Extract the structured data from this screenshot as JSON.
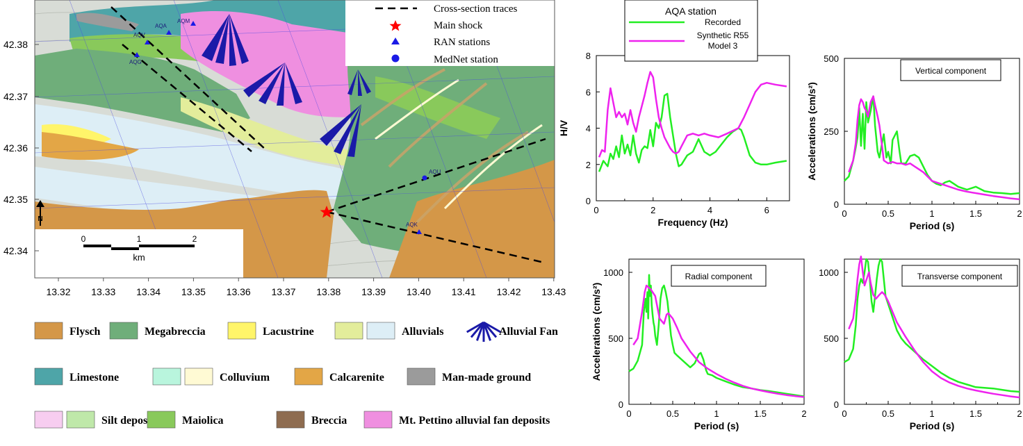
{
  "map": {
    "legend_box": {
      "items": [
        {
          "label": "Cross-section traces",
          "symbol": "dashed-line-icon"
        },
        {
          "label": "Main shock",
          "symbol": "star-icon",
          "color": "#ff0000"
        },
        {
          "label": "RAN stations",
          "symbol": "triangle-icon",
          "color": "#0000ff"
        },
        {
          "label": "MedNet station",
          "symbol": "circle-icon",
          "color": "#0000ff"
        }
      ]
    },
    "y_ticks": [
      "42.38",
      "42.37",
      "42.36",
      "42.35",
      "42.34"
    ],
    "x_ticks": [
      "13.32",
      "13.33",
      "13.34",
      "13.35",
      "13.36",
      "13.37",
      "13.38",
      "13.39",
      "13.40",
      "13.41",
      "13.42",
      "13.43"
    ],
    "stations": [
      "AQA",
      "AQM",
      "AQV",
      "AQG",
      "AQU",
      "AQK"
    ],
    "scale": {
      "ticks": [
        "0",
        "1",
        "2"
      ],
      "unit": "km"
    },
    "north_label": "N"
  },
  "geology_legend": [
    {
      "label": "Flysch",
      "colors": [
        "#d49748"
      ]
    },
    {
      "label": "Megabreccia",
      "colors": [
        "#6fae7a"
      ]
    },
    {
      "label": "Lacustrine",
      "colors": [
        "#fff56a"
      ]
    },
    {
      "label": "Alluvials",
      "colors": [
        "#e3ed9b",
        "#ddeef6"
      ]
    },
    {
      "label": "Alluvial Fan",
      "colors": [
        "#1a1aa8"
      ],
      "symbol": "fan-icon"
    },
    {
      "label": "Limestone",
      "colors": [
        "#4ea5a8"
      ]
    },
    {
      "label": "Colluvium",
      "colors": [
        "#b9f5dd",
        "#fffad4"
      ]
    },
    {
      "label": "Calcarenite",
      "colors": [
        "#e3a646"
      ]
    },
    {
      "label": "Man-made ground",
      "colors": [
        "#9b9b9b"
      ]
    },
    {
      "label": "Silt deposits",
      "colors": [
        "#f7cdf0",
        "#bfe8a9"
      ]
    },
    {
      "label": "Maiolica",
      "colors": [
        "#89c95b"
      ]
    },
    {
      "label": "Breccia",
      "colors": [
        "#8e6c50"
      ]
    },
    {
      "label": "Mt. Pettino alluvial fan deposits",
      "colors": [
        "#ef8fe0"
      ]
    }
  ],
  "series_colors": {
    "recorded": "#22ee22",
    "synthetic": "#ee22ee"
  },
  "chart_data": [
    {
      "type": "line",
      "legend": {
        "title": "AQA station",
        "entries": [
          "Recorded",
          "Synthetic R55",
          "Model 3"
        ]
      },
      "xlabel": "Frequency (Hz)",
      "ylabel": "H/V",
      "xlim": [
        0,
        6.8
      ],
      "ylim": [
        0,
        8
      ],
      "xticks": [
        "0",
        "2",
        "4",
        "6"
      ],
      "yticks": [
        "0",
        "2",
        "4",
        "6",
        "8"
      ],
      "series": [
        {
          "name": "Recorded",
          "x": [
            0.1,
            0.25,
            0.4,
            0.5,
            0.6,
            0.7,
            0.8,
            0.9,
            1.0,
            1.1,
            1.2,
            1.3,
            1.4,
            1.5,
            1.6,
            1.7,
            1.8,
            1.9,
            2.0,
            2.1,
            2.2,
            2.3,
            2.4,
            2.5,
            2.6,
            2.7,
            2.8,
            2.9,
            3.0,
            3.2,
            3.4,
            3.6,
            3.8,
            4.0,
            4.2,
            4.4,
            4.6,
            4.8,
            5.0,
            5.1,
            5.2,
            5.4,
            5.6,
            5.8,
            6.0,
            6.3,
            6.7
          ],
          "y": [
            1.6,
            2.2,
            1.9,
            2.6,
            2.3,
            3.0,
            2.4,
            3.6,
            2.6,
            3.1,
            2.5,
            3.6,
            2.6,
            2.1,
            2.8,
            3.0,
            2.9,
            3.9,
            3.0,
            4.3,
            4.0,
            4.6,
            5.8,
            5.9,
            4.6,
            3.6,
            2.6,
            1.9,
            2.0,
            2.5,
            2.7,
            3.4,
            2.7,
            2.5,
            2.7,
            3.1,
            3.5,
            3.8,
            4.0,
            3.9,
            3.5,
            2.5,
            2.1,
            2.0,
            2.0,
            2.1,
            2.2
          ]
        },
        {
          "name": "Synthetic R55 Model 3",
          "x": [
            0.1,
            0.2,
            0.3,
            0.4,
            0.5,
            0.6,
            0.7,
            0.8,
            0.9,
            1.0,
            1.1,
            1.2,
            1.3,
            1.4,
            1.5,
            1.6,
            1.7,
            1.8,
            1.9,
            2.0,
            2.1,
            2.2,
            2.3,
            2.4,
            2.5,
            2.6,
            2.7,
            2.8,
            2.9,
            3.0,
            3.2,
            3.4,
            3.6,
            3.8,
            4.0,
            4.3,
            4.6,
            5.0,
            5.2,
            5.4,
            5.6,
            5.8,
            6.0,
            6.3,
            6.7
          ],
          "y": [
            2.4,
            2.8,
            2.7,
            5.0,
            6.2,
            5.4,
            4.6,
            4.9,
            4.6,
            4.8,
            4.2,
            5.0,
            4.3,
            3.8,
            4.6,
            5.2,
            5.8,
            6.5,
            7.1,
            6.8,
            5.6,
            4.6,
            4.0,
            3.5,
            3.2,
            2.9,
            2.7,
            2.6,
            2.7,
            3.0,
            3.6,
            3.7,
            3.6,
            3.7,
            3.6,
            3.5,
            3.7,
            4.0,
            4.6,
            5.3,
            6.0,
            6.4,
            6.5,
            6.4,
            6.3
          ]
        }
      ]
    },
    {
      "type": "line",
      "title": "Vertical component",
      "xlabel": "Period (s)",
      "ylabel": "Accelerations (cm/s²)",
      "xlim": [
        0,
        2
      ],
      "ylim": [
        0,
        500
      ],
      "xticks": [
        "0",
        "0.5",
        "1",
        "1.5",
        "2"
      ],
      "yticks": [
        "0",
        "250",
        "500"
      ],
      "series": [
        {
          "name": "Recorded",
          "x": [
            0.0,
            0.05,
            0.1,
            0.13,
            0.15,
            0.17,
            0.19,
            0.21,
            0.23,
            0.25,
            0.27,
            0.3,
            0.33,
            0.35,
            0.38,
            0.4,
            0.43,
            0.45,
            0.48,
            0.5,
            0.53,
            0.55,
            0.6,
            0.63,
            0.65,
            0.7,
            0.75,
            0.8,
            0.85,
            0.9,
            0.95,
            1.0,
            1.05,
            1.1,
            1.15,
            1.2,
            1.25,
            1.3,
            1.35,
            1.4,
            1.45,
            1.5,
            1.6,
            1.7,
            1.8,
            1.9,
            2.0
          ],
          "y": [
            80,
            95,
            150,
            195,
            230,
            330,
            200,
            310,
            190,
            350,
            280,
            320,
            370,
            270,
            180,
            160,
            210,
            240,
            160,
            180,
            140,
            220,
            250,
            180,
            140,
            140,
            165,
            170,
            160,
            130,
            100,
            80,
            70,
            65,
            75,
            80,
            70,
            60,
            55,
            50,
            55,
            60,
            45,
            40,
            38,
            35,
            38
          ]
        },
        {
          "name": "Synthetic R55 Model 3",
          "x": [
            0.05,
            0.1,
            0.13,
            0.15,
            0.17,
            0.19,
            0.21,
            0.23,
            0.25,
            0.27,
            0.3,
            0.33,
            0.35,
            0.38,
            0.4,
            0.43,
            0.45,
            0.5,
            0.55,
            0.6,
            0.65,
            0.7,
            0.75,
            0.8,
            0.85,
            0.9,
            1.0,
            1.1,
            1.2,
            1.3,
            1.4,
            1.5,
            1.6,
            1.7,
            1.8,
            1.9,
            2.0
          ],
          "y": [
            110,
            150,
            210,
            290,
            340,
            360,
            350,
            330,
            320,
            300,
            350,
            370,
            340,
            300,
            270,
            200,
            150,
            140,
            145,
            140,
            140,
            135,
            140,
            130,
            120,
            110,
            80,
            70,
            60,
            50,
            43,
            38,
            33,
            28,
            24,
            20,
            17
          ]
        }
      ]
    },
    {
      "type": "line",
      "title": "Radial component",
      "xlabel": "Period (s)",
      "ylabel": "Accelerations (cm/s²)",
      "xlim": [
        0,
        2
      ],
      "ylim": [
        0,
        1100
      ],
      "xticks": [
        "0",
        "0.5",
        "1",
        "1.5",
        "2"
      ],
      "yticks": [
        "0",
        "500",
        "1000"
      ],
      "series": [
        {
          "name": "Recorded",
          "x": [
            0.0,
            0.05,
            0.1,
            0.15,
            0.17,
            0.19,
            0.2,
            0.21,
            0.22,
            0.23,
            0.24,
            0.25,
            0.26,
            0.27,
            0.28,
            0.29,
            0.3,
            0.32,
            0.34,
            0.36,
            0.38,
            0.4,
            0.42,
            0.44,
            0.46,
            0.48,
            0.5,
            0.52,
            0.55,
            0.6,
            0.7,
            0.75,
            0.8,
            0.82,
            0.85,
            0.88,
            0.9,
            0.95,
            1.0,
            1.1,
            1.2,
            1.3,
            1.4,
            1.5,
            1.6,
            1.7,
            1.8,
            1.9,
            2.0
          ],
          "y": [
            250,
            270,
            330,
            450,
            700,
            800,
            700,
            850,
            650,
            980,
            820,
            900,
            750,
            680,
            620,
            590,
            520,
            450,
            600,
            800,
            880,
            900,
            850,
            780,
            650,
            520,
            450,
            390,
            370,
            340,
            280,
            310,
            380,
            390,
            340,
            260,
            230,
            220,
            200,
            175,
            150,
            130,
            120,
            108,
            100,
            90,
            80,
            70,
            60
          ]
        },
        {
          "name": "Synthetic R55 Model 3",
          "x": [
            0.05,
            0.1,
            0.15,
            0.18,
            0.2,
            0.25,
            0.3,
            0.35,
            0.4,
            0.43,
            0.45,
            0.5,
            0.55,
            0.6,
            0.7,
            0.8,
            0.9,
            1.0,
            1.1,
            1.2,
            1.3,
            1.4,
            1.5,
            1.6,
            1.7,
            1.8,
            1.9,
            2.0
          ],
          "y": [
            450,
            500,
            700,
            850,
            900,
            870,
            820,
            650,
            610,
            680,
            690,
            650,
            580,
            500,
            400,
            320,
            270,
            230,
            195,
            165,
            140,
            120,
            105,
            92,
            80,
            70,
            62,
            55
          ]
        }
      ]
    },
    {
      "type": "line",
      "title": "Transverse component",
      "xlabel": "Period (s)",
      "ylabel": "",
      "xlim": [
        0,
        2
      ],
      "ylim": [
        0,
        1100
      ],
      "xticks": [
        "0",
        "0.5",
        "1",
        "1.5",
        "2"
      ],
      "yticks": [
        "0",
        "500",
        "1000"
      ],
      "series": [
        {
          "name": "Recorded",
          "x": [
            0.0,
            0.05,
            0.1,
            0.13,
            0.15,
            0.17,
            0.19,
            0.21,
            0.23,
            0.25,
            0.27,
            0.29,
            0.31,
            0.33,
            0.35,
            0.37,
            0.39,
            0.41,
            0.43,
            0.45,
            0.47,
            0.5,
            0.55,
            0.6,
            0.65,
            0.7,
            0.8,
            0.9,
            1.0,
            1.1,
            1.2,
            1.3,
            1.4,
            1.5,
            1.6,
            1.7,
            1.8,
            1.9,
            2.0
          ],
          "y": [
            320,
            340,
            420,
            600,
            800,
            900,
            950,
            920,
            1000,
            1100,
            1080,
            950,
            780,
            700,
            820,
            950,
            1050,
            1100,
            1080,
            950,
            820,
            760,
            660,
            560,
            500,
            460,
            400,
            340,
            290,
            240,
            200,
            170,
            150,
            130,
            125,
            120,
            110,
            100,
            95
          ]
        },
        {
          "name": "Synthetic R55 Model 3",
          "x": [
            0.05,
            0.1,
            0.13,
            0.15,
            0.17,
            0.19,
            0.21,
            0.23,
            0.25,
            0.28,
            0.3,
            0.33,
            0.36,
            0.4,
            0.43,
            0.46,
            0.5,
            0.55,
            0.6,
            0.7,
            0.8,
            0.9,
            1.0,
            1.1,
            1.2,
            1.3,
            1.4,
            1.5,
            1.6,
            1.7,
            1.8,
            1.9,
            2.0
          ],
          "y": [
            570,
            650,
            800,
            950,
            1060,
            1120,
            1000,
            900,
            940,
            1000,
            920,
            830,
            800,
            830,
            850,
            830,
            780,
            700,
            620,
            510,
            410,
            320,
            250,
            200,
            165,
            140,
            120,
            105,
            92,
            80,
            70,
            60,
            52
          ]
        }
      ]
    }
  ]
}
